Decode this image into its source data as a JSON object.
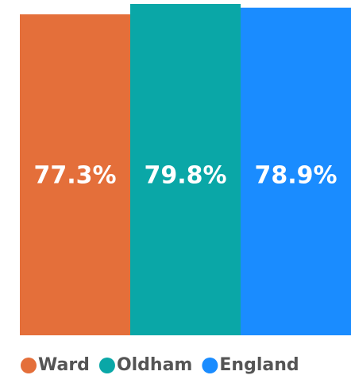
{
  "chart_data": {
    "type": "bar",
    "categories": [
      "Ward",
      "Oldham",
      "England"
    ],
    "values": [
      77.3,
      79.8,
      78.9
    ],
    "value_labels": [
      "77.3%",
      "79.8%",
      "78.9%"
    ],
    "colors": [
      "#e46f3a",
      "#0aa7a7",
      "#1a8cff"
    ]
  }
}
